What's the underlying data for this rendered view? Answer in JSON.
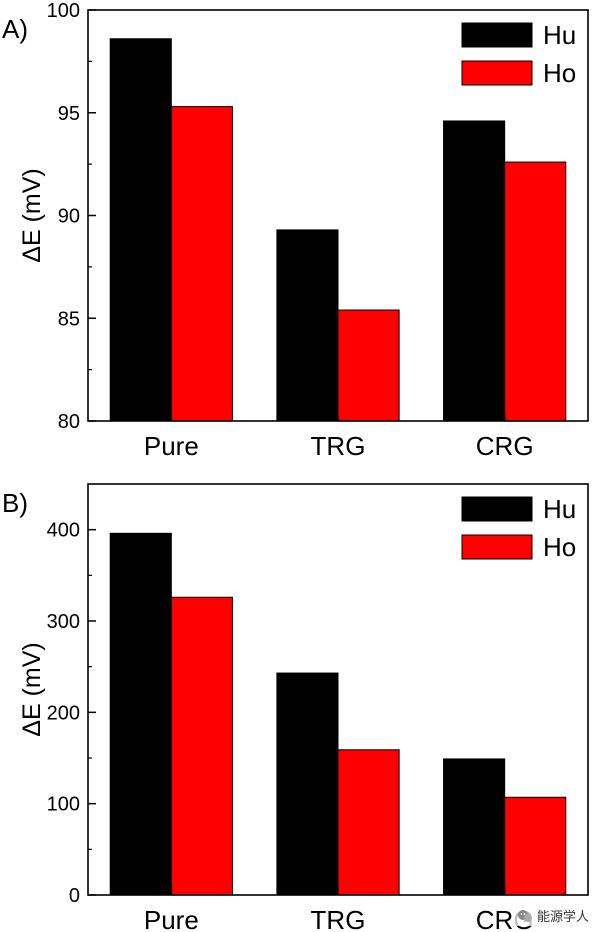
{
  "chart_data": [
    {
      "type": "bar",
      "panel_label": "A)",
      "categories": [
        "Pure",
        "TRG",
        "CRG"
      ],
      "series": [
        {
          "name": "Hu",
          "color": "#000000",
          "values": [
            98.6,
            89.3,
            94.6
          ]
        },
        {
          "name": "Ho",
          "color": "#ff0000",
          "values": [
            95.3,
            85.4,
            92.6
          ]
        }
      ],
      "ylabel": "ΔE (mV)",
      "ylim": [
        80,
        100
      ],
      "yticks": [
        80,
        85,
        90,
        95,
        100
      ],
      "legend_position": "top-right"
    },
    {
      "type": "bar",
      "panel_label": "B)",
      "categories": [
        "Pure",
        "TRG",
        "CRG"
      ],
      "series": [
        {
          "name": "Hu",
          "color": "#000000",
          "values": [
            396,
            243,
            149
          ]
        },
        {
          "name": "Ho",
          "color": "#ff0000",
          "values": [
            326,
            159,
            107
          ]
        }
      ],
      "ylabel": "ΔE (mV)",
      "ylim": [
        0,
        450
      ],
      "yticks": [
        0,
        100,
        200,
        300,
        400
      ],
      "legend_position": "top-right"
    }
  ],
  "watermark": {
    "text": "能源学人",
    "icon": "wechat-icon"
  }
}
